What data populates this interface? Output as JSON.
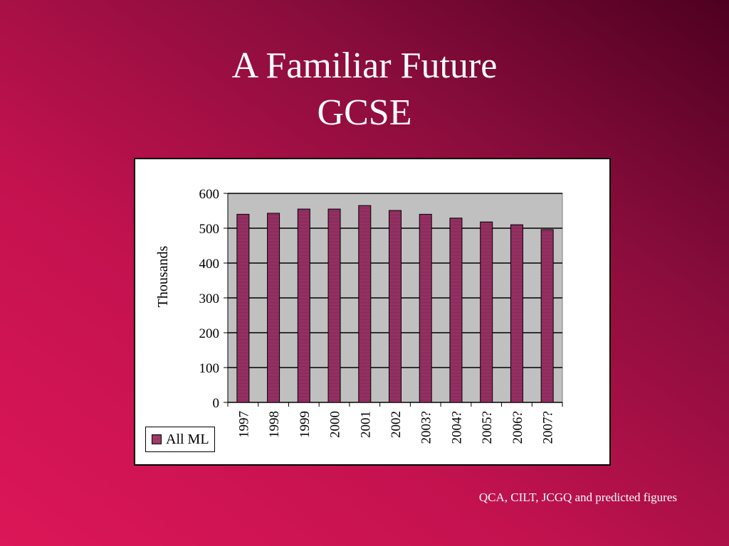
{
  "slide": {
    "title_line1": "A Familiar Future",
    "title_line2": "GCSE",
    "source": "QCA, CILT, JCGQ and predicted figures"
  },
  "chart_data": {
    "type": "bar",
    "categories": [
      "1997",
      "1998",
      "1999",
      "2000",
      "2001",
      "2002",
      "2003?",
      "2004?",
      "2005?",
      "2006?",
      "2007?"
    ],
    "series": [
      {
        "name": "All ML",
        "values": [
          540,
          543,
          555,
          555,
          565,
          551,
          540,
          529,
          518,
          510,
          496
        ]
      }
    ],
    "ylabel": "Thousands",
    "ylim": [
      0,
      600
    ],
    "yticks": [
      0,
      100,
      200,
      300,
      400,
      500,
      600
    ],
    "grid": true,
    "legend": "bottom-left",
    "colors": {
      "bar_fill": "#a33a6e",
      "bar_stripe": "#7e2252",
      "plot_bg": "#c0c0c0"
    }
  }
}
